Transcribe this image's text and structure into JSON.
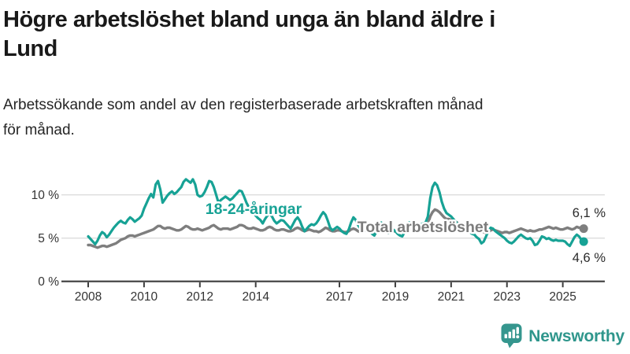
{
  "header": {
    "title_line1": "Högre arbetslöshet bland unga än bland äldre i",
    "title_line2": "Lund",
    "subtitle_line1": "Arbetssökande som andel av den registerbaserade arbetskraften månad",
    "subtitle_line2": "för månad."
  },
  "branding": {
    "logo_text": "Newsworthy",
    "logo_color": "#2F968C",
    "logo_icon": "newsworthy-bar-chart-bubble-icon"
  },
  "chart_data": {
    "type": "line",
    "title": "Högre arbetslöshet bland unga än bland äldre i Lund",
    "xlabel": "",
    "ylabel": "",
    "x_unit": "year-month",
    "x_start": {
      "year": 2008,
      "month": 1
    },
    "x_interval": "monthly",
    "x_ticks": [
      2008,
      2010,
      2012,
      2014,
      2017,
      2019,
      2021,
      2023,
      2025
    ],
    "y_ticks": [
      {
        "value": 0,
        "label": "0 %"
      },
      {
        "value": 5,
        "label": "5 %"
      },
      {
        "value": 10,
        "label": "10 %"
      }
    ],
    "ylim": [
      0,
      13
    ],
    "grid": "horizontal",
    "grid_color": "#DCDCDC",
    "axis_color": "#3D3D3D",
    "legend_position": "inline-labels",
    "series": [
      {
        "name": "Total arbetslöshet",
        "color": "#7E7E7E",
        "end_label": "6,1 %",
        "end_value": 6.1,
        "values": [
          4.2,
          4.2,
          4.1,
          4.0,
          3.9,
          4.0,
          4.1,
          4.1,
          4.0,
          4.1,
          4.2,
          4.3,
          4.4,
          4.6,
          4.8,
          4.9,
          5.0,
          5.2,
          5.3,
          5.3,
          5.2,
          5.3,
          5.4,
          5.5,
          5.6,
          5.7,
          5.8,
          5.9,
          6.0,
          6.2,
          6.4,
          6.4,
          6.2,
          6.1,
          6.2,
          6.2,
          6.1,
          6.0,
          5.9,
          5.9,
          6.0,
          6.2,
          6.4,
          6.3,
          6.1,
          6.0,
          6.0,
          6.1,
          6.0,
          5.9,
          6.0,
          6.1,
          6.2,
          6.4,
          6.5,
          6.3,
          6.1,
          6.0,
          6.1,
          6.1,
          6.1,
          6.0,
          6.1,
          6.2,
          6.3,
          6.5,
          6.5,
          6.4,
          6.2,
          6.1,
          6.1,
          6.2,
          6.1,
          6.0,
          5.9,
          5.9,
          6.0,
          6.2,
          6.3,
          6.2,
          6.0,
          5.9,
          5.9,
          6.0,
          6.0,
          5.9,
          5.8,
          5.8,
          5.9,
          6.1,
          6.2,
          6.1,
          5.9,
          5.8,
          5.9,
          6.0,
          5.9,
          5.8,
          5.8,
          5.7,
          5.8,
          6.0,
          6.2,
          6.1,
          5.9,
          5.8,
          5.8,
          5.9,
          5.9,
          5.8,
          5.7,
          5.7,
          5.8,
          6.0,
          6.1,
          6.0,
          5.8,
          5.7,
          5.8,
          5.9,
          5.8,
          5.7,
          5.6,
          5.6,
          5.7,
          5.9,
          6.0,
          5.9,
          5.7,
          5.6,
          5.7,
          5.8,
          5.8,
          5.7,
          5.6,
          5.7,
          5.8,
          6.0,
          6.1,
          6.0,
          5.9,
          5.9,
          6.0,
          6.0,
          6.0,
          6.1,
          6.6,
          7.5,
          8.0,
          8.3,
          8.2,
          8.0,
          7.7,
          7.4,
          7.2,
          7.2,
          7.1,
          7.0,
          6.9,
          6.7,
          6.6,
          6.6,
          6.5,
          6.3,
          6.1,
          6.0,
          5.9,
          5.9,
          5.9,
          5.8,
          5.7,
          5.6,
          5.7,
          5.9,
          6.0,
          5.9,
          5.8,
          5.7,
          5.6,
          5.7,
          5.7,
          5.6,
          5.7,
          5.8,
          5.9,
          6.0,
          6.1,
          6.0,
          5.9,
          5.8,
          5.9,
          5.8,
          5.8,
          5.9,
          6.0,
          6.0,
          6.1,
          6.2,
          6.3,
          6.2,
          6.1,
          6.2,
          6.1,
          6.0,
          6.0,
          6.1,
          6.2,
          6.1,
          6.0,
          6.1,
          6.3,
          6.2,
          6.2,
          6.1
        ]
      },
      {
        "name": "18-24-åringar",
        "color": "#17A295",
        "end_label": "4,6 %",
        "end_value": 4.6,
        "values": [
          5.2,
          4.9,
          4.6,
          4.3,
          4.7,
          5.3,
          5.7,
          5.5,
          5.1,
          5.4,
          5.8,
          6.2,
          6.5,
          6.8,
          7.0,
          6.8,
          6.7,
          7.1,
          7.4,
          7.2,
          6.9,
          7.1,
          7.3,
          7.6,
          8.4,
          9.0,
          9.6,
          10.1,
          9.7,
          11.2,
          11.6,
          10.6,
          9.1,
          9.5,
          9.9,
          10.2,
          10.4,
          10.1,
          10.3,
          10.6,
          10.9,
          11.5,
          11.8,
          11.6,
          11.4,
          11.8,
          11.2,
          10.0,
          9.8,
          9.9,
          10.3,
          10.9,
          11.6,
          11.5,
          10.9,
          10.0,
          9.1,
          9.4,
          9.6,
          9.8,
          9.6,
          9.4,
          9.6,
          9.9,
          10.2,
          10.5,
          10.4,
          9.8,
          9.1,
          8.6,
          8.2,
          7.9,
          7.6,
          7.3,
          7.1,
          6.7,
          7.2,
          7.6,
          7.8,
          7.5,
          7.0,
          6.7,
          6.9,
          7.1,
          7.0,
          6.7,
          6.4,
          6.1,
          6.6,
          7.1,
          7.4,
          7.0,
          6.3,
          5.8,
          6.1,
          6.4,
          6.6,
          6.5,
          6.7,
          7.1,
          7.6,
          8.0,
          7.7,
          7.0,
          6.2,
          5.9,
          6.1,
          6.3,
          6.1,
          5.8,
          5.6,
          5.5,
          6.0,
          6.8,
          7.4,
          7.1,
          6.5,
          6.1,
          6.2,
          6.3,
          6.1,
          5.8,
          5.5,
          5.3,
          5.8,
          6.4,
          6.8,
          6.5,
          5.9,
          5.6,
          5.8,
          6.0,
          5.8,
          5.5,
          5.3,
          5.2,
          5.7,
          6.3,
          6.8,
          6.6,
          6.3,
          6.2,
          6.4,
          6.6,
          6.7,
          6.8,
          7.5,
          9.6,
          10.9,
          11.4,
          11.1,
          10.3,
          9.2,
          8.4,
          7.9,
          7.7,
          7.5,
          7.2,
          6.9,
          6.5,
          6.3,
          6.6,
          6.4,
          6.0,
          5.7,
          5.5,
          5.4,
          5.1,
          4.9,
          4.4,
          4.6,
          5.2,
          5.8,
          6.2,
          6.1,
          5.8,
          5.6,
          5.4,
          5.2,
          5.0,
          4.7,
          4.5,
          4.4,
          4.6,
          4.9,
          5.2,
          5.4,
          5.2,
          5.0,
          4.9,
          5.0,
          4.7,
          4.2,
          4.3,
          4.7,
          5.2,
          5.1,
          4.9,
          5.0,
          4.8,
          4.7,
          4.8,
          4.7,
          4.7,
          4.7,
          4.6,
          4.3,
          4.1,
          4.6,
          5.1,
          5.4,
          5.2,
          4.8,
          4.6
        ]
      }
    ]
  }
}
